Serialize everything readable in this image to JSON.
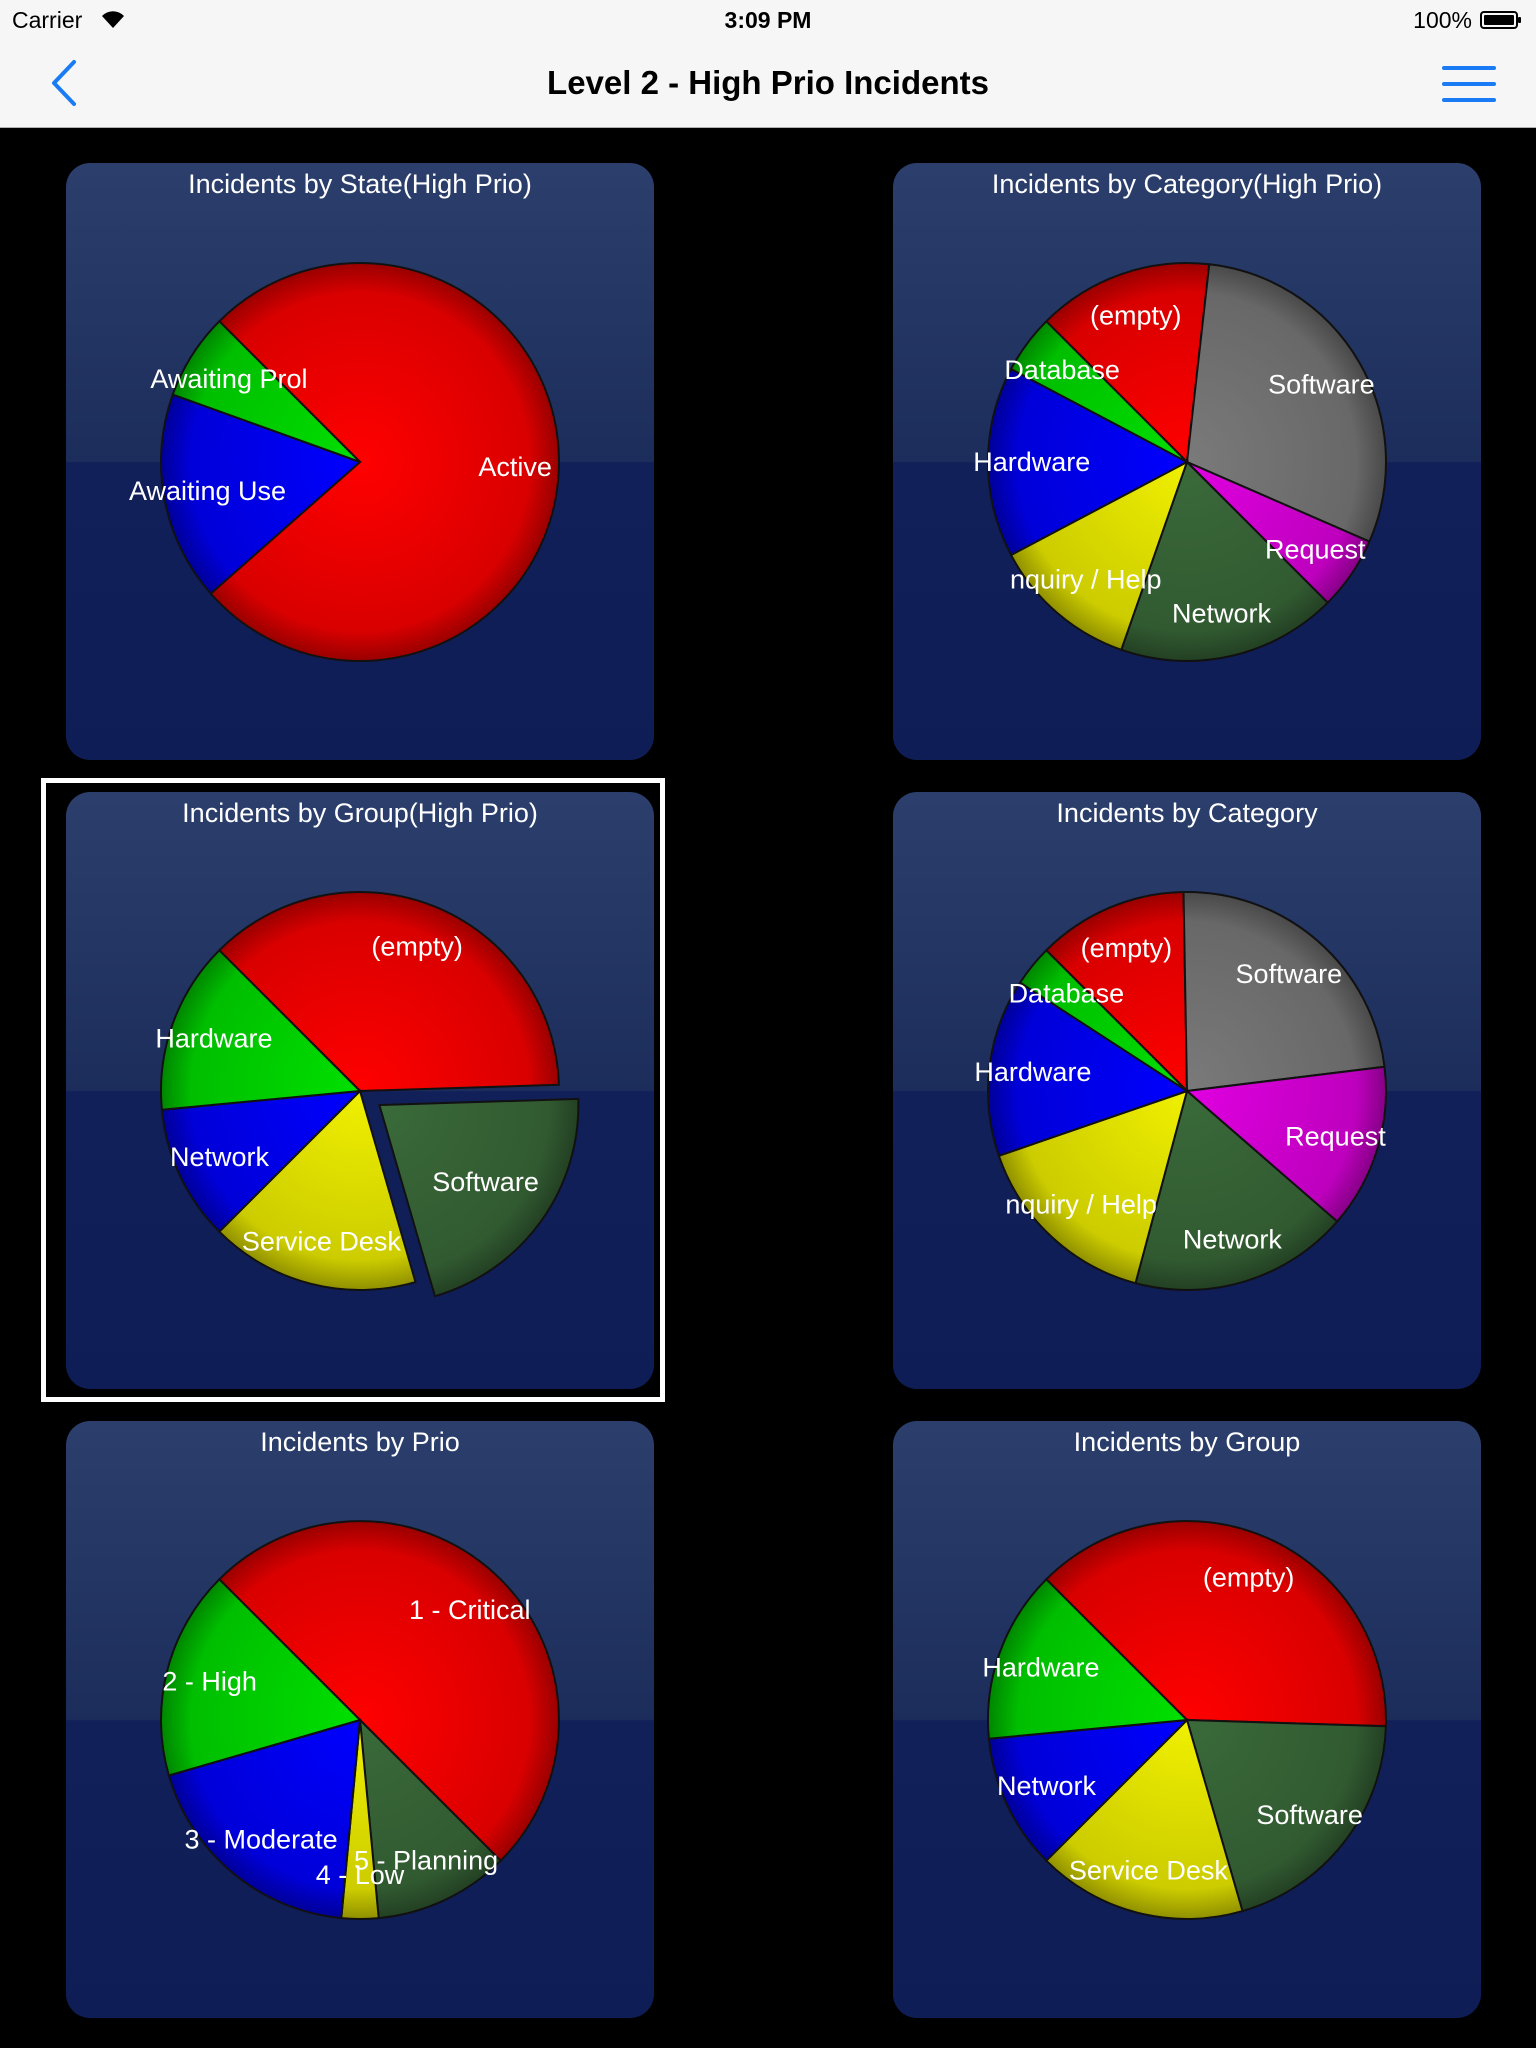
{
  "status_bar": {
    "carrier": "Carrier",
    "time": "3:09 PM",
    "battery": "100%"
  },
  "nav": {
    "title": "Level 2 - High Prio Incidents",
    "back_icon": "chevron-left-icon",
    "menu_icon": "hamburger-menu-icon",
    "accent": "#1a7cf5"
  },
  "selected_chart": "Incidents by Group(High Prio)",
  "chart_data": [
    {
      "type": "pie",
      "title": "Incidents by State(High Prio)",
      "slices": [
        {
          "label": "Active",
          "value": 76,
          "color": "#ff0000"
        },
        {
          "label": "Awaiting Use",
          "value": 17,
          "color": "#0000ff"
        },
        {
          "label": "Awaiting Prol",
          "value": 7,
          "color": "#00e000"
        }
      ]
    },
    {
      "type": "pie",
      "title": "Incidents by Category(High Prio)",
      "slices": [
        {
          "label": "(empty)",
          "value": 12,
          "color": "#ff0000"
        },
        {
          "label": "Software",
          "value": 25,
          "color": "#7a7a7a"
        },
        {
          "label": "Request",
          "value": 5,
          "color": "#e000e0"
        },
        {
          "label": "Network",
          "value": 15,
          "color": "#3a6a3a"
        },
        {
          "label": "nquiry / Help",
          "value": 10,
          "color": "#f0f000"
        },
        {
          "label": "Hardware",
          "value": 13,
          "color": "#0000ff"
        },
        {
          "label": "Database",
          "value": 4,
          "color": "#00e000"
        }
      ]
    },
    {
      "type": "pie",
      "title": "Incidents by Group(High Prio)",
      "slices": [
        {
          "label": "(empty)",
          "value": 37,
          "color": "#ff0000",
          "exploded": false
        },
        {
          "label": "Software",
          "value": 21,
          "color": "#3a6a3a",
          "exploded": true
        },
        {
          "label": "Service Desk",
          "value": 17,
          "color": "#f0f000",
          "exploded": false
        },
        {
          "label": "Network",
          "value": 11,
          "color": "#0000ff",
          "exploded": false
        },
        {
          "label": "Hardware",
          "value": 14,
          "color": "#00e000",
          "exploded": false
        }
      ]
    },
    {
      "type": "pie",
      "title": "Incidents by Category",
      "slices": [
        {
          "label": "(empty)",
          "value": 11,
          "color": "#ff0000"
        },
        {
          "label": "Software",
          "value": 21,
          "color": "#7a7a7a"
        },
        {
          "label": "Request",
          "value": 12,
          "color": "#e000e0"
        },
        {
          "label": "Network",
          "value": 16,
          "color": "#3a6a3a"
        },
        {
          "label": "nquiry / Help",
          "value": 14,
          "color": "#f0f000"
        },
        {
          "label": "Hardware",
          "value": 13,
          "color": "#0000ff"
        },
        {
          "label": "Database",
          "value": 3,
          "color": "#00e000"
        }
      ]
    },
    {
      "type": "pie",
      "title": "Incidents by Prio",
      "slices": [
        {
          "label": "1 - Critical",
          "value": 50,
          "color": "#ff0000"
        },
        {
          "label": "5 - Planning",
          "value": 11,
          "color": "#3a6a3a"
        },
        {
          "label": "4 - Low",
          "value": 3,
          "color": "#f0f000"
        },
        {
          "label": "3 - Moderate",
          "value": 19,
          "color": "#0000ff"
        },
        {
          "label": "2 - High",
          "value": 17,
          "color": "#00e000"
        }
      ]
    },
    {
      "type": "pie",
      "title": "Incidents by Group",
      "slices": [
        {
          "label": "(empty)",
          "value": 38,
          "color": "#ff0000"
        },
        {
          "label": "Software",
          "value": 20,
          "color": "#3a6a3a"
        },
        {
          "label": "Service Desk",
          "value": 17,
          "color": "#f0f000"
        },
        {
          "label": "Network",
          "value": 11,
          "color": "#0000ff"
        },
        {
          "label": "Hardware",
          "value": 14,
          "color": "#00e000"
        }
      ]
    }
  ]
}
